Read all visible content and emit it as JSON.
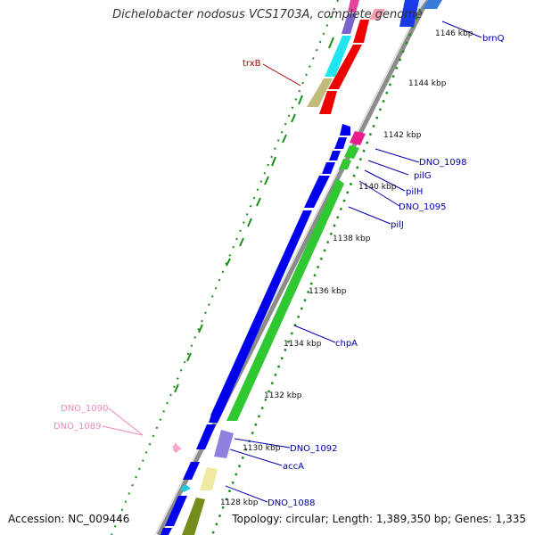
{
  "title": "Dichelobacter nodosus VCS1703A, complete genome",
  "accession": "Accession: NC_009446",
  "topology": "Topology: circular; Length: 1,389,350 bp; Genes: 1,335",
  "colors": {
    "backbone": "#8c8c8c",
    "tick": "#1a8c1a",
    "gene_label": "#0000aa",
    "trxB_label": "#aa0000",
    "pink_label": "#ee88bb"
  },
  "ticks": [
    {
      "label": "1146 kbp"
    },
    {
      "label": "1144 kbp"
    },
    {
      "label": "1142 kbp"
    },
    {
      "label": "1140 kbp"
    },
    {
      "label": "1138 kbp"
    },
    {
      "label": "1136 kbp"
    },
    {
      "label": "1134 kbp"
    },
    {
      "label": "1132 kbp"
    },
    {
      "label": "1130 kbp"
    },
    {
      "label": "1128 kbp"
    }
  ],
  "gene_labels": [
    {
      "text": "brnQ"
    },
    {
      "text": "trxB"
    },
    {
      "text": "DNO_1098"
    },
    {
      "text": "pilG"
    },
    {
      "text": "pilH"
    },
    {
      "text": "DNO_1095"
    },
    {
      "text": "pilJ"
    },
    {
      "text": "chpA"
    },
    {
      "text": "DNO_1092"
    },
    {
      "text": "accA"
    },
    {
      "text": "DNO_1088"
    },
    {
      "text": "DNO_1090"
    },
    {
      "text": "DNO_1089"
    }
  ]
}
